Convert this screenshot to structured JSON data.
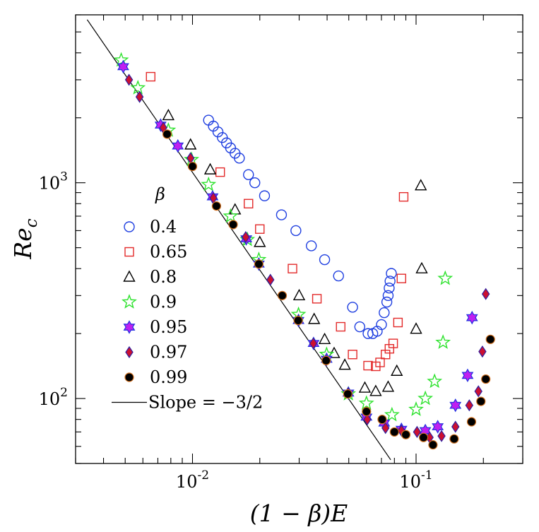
{
  "chart_data": {
    "type": "scatter",
    "xscale": "log",
    "yscale": "log",
    "xlabel": "(1 − β)E",
    "ylabel_main": "Re",
    "ylabel_sub": "c",
    "xlim": [
      0.003,
      0.3
    ],
    "ylim": [
      50,
      6000
    ],
    "xtick_labels": [
      {
        "value": 0.01,
        "base": "10",
        "exp": "-2"
      },
      {
        "value": 0.1,
        "base": "10",
        "exp": "-1"
      }
    ],
    "ytick_labels": [
      {
        "value": 100,
        "base": "10",
        "exp": "2"
      },
      {
        "value": 1000,
        "base": "10",
        "exp": "3"
      }
    ],
    "legend_title": "β",
    "legend_position": "left-middle",
    "reference_line": {
      "label": "Slope = −3/2",
      "slope": -1.5,
      "points": [
        [
          0.00338,
          5700
        ],
        [
          0.077,
          52
        ]
      ]
    },
    "series": [
      {
        "name": "0.4",
        "marker": "circle",
        "color": "#1f3fe0",
        "points": [
          [
            0.0118,
            1950
          ],
          [
            0.0124,
            1830
          ],
          [
            0.013,
            1720
          ],
          [
            0.0136,
            1620
          ],
          [
            0.0142,
            1530
          ],
          [
            0.0148,
            1450
          ],
          [
            0.0155,
            1370
          ],
          [
            0.0162,
            1300
          ],
          [
            0.0178,
            1090
          ],
          [
            0.019,
            1000
          ],
          [
            0.021,
            870
          ],
          [
            0.025,
            710
          ],
          [
            0.029,
            600
          ],
          [
            0.034,
            510
          ],
          [
            0.039,
            440
          ],
          [
            0.045,
            370
          ],
          [
            0.052,
            265
          ],
          [
            0.056,
            215
          ],
          [
            0.061,
            200
          ],
          [
            0.064,
            200
          ],
          [
            0.067,
            205
          ],
          [
            0.07,
            220
          ],
          [
            0.072,
            250
          ],
          [
            0.074,
            280
          ],
          [
            0.075,
            300
          ],
          [
            0.0758,
            325
          ],
          [
            0.0765,
            350
          ],
          [
            0.0775,
            380
          ]
        ]
      },
      {
        "name": "0.65",
        "marker": "square",
        "color": "#e32a2a",
        "points": [
          [
            0.0065,
            3100
          ],
          [
            0.0133,
            1120
          ],
          [
            0.0178,
            800
          ],
          [
            0.02,
            610
          ],
          [
            0.028,
            400
          ],
          [
            0.036,
            290
          ],
          [
            0.046,
            215
          ],
          [
            0.052,
            160
          ],
          [
            0.061,
            142
          ],
          [
            0.066,
            141
          ],
          [
            0.069,
            147
          ],
          [
            0.073,
            160
          ],
          [
            0.076,
            170
          ],
          [
            0.079,
            180
          ],
          [
            0.083,
            225
          ],
          [
            0.086,
            360
          ],
          [
            0.088,
            860
          ]
        ]
      },
      {
        "name": "0.8",
        "marker": "triangle",
        "color": "#000000",
        "points": [
          [
            0.0078,
            2050
          ],
          [
            0.0098,
            1500
          ],
          [
            0.012,
            1150
          ],
          [
            0.0155,
            750
          ],
          [
            0.02,
            530
          ],
          [
            0.03,
            300
          ],
          [
            0.035,
            233
          ],
          [
            0.039,
            188
          ],
          [
            0.043,
            162
          ],
          [
            0.048,
            143
          ],
          [
            0.059,
            112
          ],
          [
            0.066,
            108
          ],
          [
            0.075,
            113
          ],
          [
            0.082,
            134
          ],
          [
            0.1,
            210
          ],
          [
            0.106,
            400
          ],
          [
            0.105,
            970
          ]
        ]
      },
      {
        "name": "0.9",
        "marker": "star",
        "color": "#2ee22e",
        "points": [
          [
            0.0048,
            3700
          ],
          [
            0.0057,
            2750
          ],
          [
            0.0078,
            1750
          ],
          [
            0.0099,
            1280
          ],
          [
            0.0118,
            980
          ],
          [
            0.0148,
            700
          ],
          [
            0.0176,
            545
          ],
          [
            0.0198,
            440
          ],
          [
            0.0298,
            245
          ],
          [
            0.0398,
            160
          ],
          [
            0.0498,
            105
          ],
          [
            0.06,
            95
          ],
          [
            0.078,
            84
          ],
          [
            0.1,
            89
          ],
          [
            0.11,
            100
          ],
          [
            0.121,
            120
          ],
          [
            0.132,
            182
          ],
          [
            0.135,
            360
          ]
        ]
      },
      {
        "name": "0.95",
        "marker": "sixstar",
        "color": "#c020f0",
        "points": [
          [
            0.0049,
            3450
          ],
          [
            0.0072,
            1850
          ],
          [
            0.0086,
            1480
          ],
          [
            0.0123,
            860
          ],
          [
            0.0174,
            550
          ],
          [
            0.0198,
            420
          ],
          [
            0.0298,
            230
          ],
          [
            0.0348,
            180
          ],
          [
            0.0398,
            152
          ],
          [
            0.0498,
            106
          ],
          [
            0.06,
            82
          ],
          [
            0.072,
            77
          ],
          [
            0.086,
            72
          ],
          [
            0.11,
            71
          ],
          [
            0.125,
            74
          ],
          [
            0.15,
            93
          ],
          [
            0.17,
            128
          ],
          [
            0.178,
            237
          ]
        ]
      },
      {
        "name": "0.97",
        "marker": "diamond",
        "color": "#cc1030",
        "points": [
          [
            0.0052,
            3000
          ],
          [
            0.0058,
            2500
          ],
          [
            0.0074,
            1800
          ],
          [
            0.0098,
            1300
          ],
          [
            0.0124,
            850
          ],
          [
            0.0173,
            560
          ],
          [
            0.0223,
            355
          ],
          [
            0.0297,
            230
          ],
          [
            0.0347,
            180
          ],
          [
            0.0396,
            150
          ],
          [
            0.0497,
            106
          ],
          [
            0.0605,
            80
          ],
          [
            0.073,
            73
          ],
          [
            0.086,
            71
          ],
          [
            0.101,
            70
          ],
          [
            0.115,
            66
          ],
          [
            0.13,
            67
          ],
          [
            0.15,
            74
          ],
          [
            0.173,
            93
          ],
          [
            0.19,
            108
          ],
          [
            0.198,
            165
          ],
          [
            0.205,
            305
          ]
        ]
      },
      {
        "name": "0.99",
        "marker": "dot",
        "color": "#000000",
        "points": [
          [
            0.0077,
            1680
          ],
          [
            0.01,
            1190
          ],
          [
            0.0128,
            780
          ],
          [
            0.0152,
            640
          ],
          [
            0.0198,
            420
          ],
          [
            0.0252,
            300
          ],
          [
            0.0297,
            230
          ],
          [
            0.0396,
            150
          ],
          [
            0.0495,
            105
          ],
          [
            0.06,
            87
          ],
          [
            0.0705,
            80
          ],
          [
            0.08,
            70
          ],
          [
            0.09,
            68
          ],
          [
            0.108,
            66
          ],
          [
            0.119,
            61
          ],
          [
            0.148,
            65
          ],
          [
            0.177,
            78
          ],
          [
            0.195,
            97
          ],
          [
            0.205,
            123
          ],
          [
            0.215,
            188
          ]
        ]
      }
    ]
  }
}
